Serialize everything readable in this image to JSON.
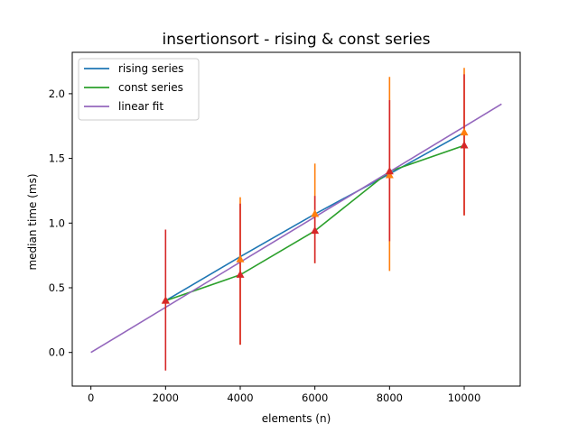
{
  "chart_data": {
    "type": "line",
    "title": "insertionsort - rising & const series",
    "xlabel": "elements (n)",
    "ylabel": "median time (ms)",
    "xlim": [
      -500,
      11500
    ],
    "ylim": [
      -0.26,
      2.32
    ],
    "xticks": [
      0,
      2000,
      4000,
      6000,
      8000,
      10000
    ],
    "xtick_labels": [
      "0",
      "2000",
      "4000",
      "6000",
      "8000",
      "10000"
    ],
    "yticks": [
      0.0,
      0.5,
      1.0,
      1.5,
      2.0
    ],
    "ytick_labels": [
      "0.0",
      "0.5",
      "1.0",
      "1.5",
      "2.0"
    ],
    "grid": false,
    "legend_position": "top-left",
    "series": [
      {
        "name": "rising series",
        "color": "#1f77b4",
        "x": [
          2000,
          4000,
          6000,
          8000,
          10000
        ],
        "y": [
          0.4,
          0.74,
          1.07,
          1.38,
          1.7
        ]
      },
      {
        "name": "const series",
        "color": "#2ca02c",
        "x": [
          2000,
          4000,
          6000,
          8000,
          10000
        ],
        "y": [
          0.4,
          0.6,
          0.94,
          1.4,
          1.6
        ]
      },
      {
        "name": "linear fit",
        "color": "#9467bd",
        "x": [
          0,
          11000
        ],
        "y": [
          0.0,
          1.92
        ]
      }
    ],
    "error_markers": [
      {
        "color": "#ff7f0e",
        "x": [
          2000,
          4000,
          6000,
          8000,
          10000
        ],
        "y": [
          0.4,
          0.72,
          1.07,
          1.37,
          1.7
        ],
        "low": [
          0.4,
          0.06,
          0.69,
          0.63,
          1.06
        ],
        "high": [
          0.4,
          1.2,
          1.46,
          2.13,
          2.2
        ]
      },
      {
        "color": "#d62728",
        "x": [
          2000,
          4000,
          6000,
          8000,
          10000
        ],
        "y": [
          0.4,
          0.6,
          0.94,
          1.4,
          1.6
        ],
        "low": [
          -0.14,
          0.06,
          0.69,
          0.86,
          1.06
        ],
        "high": [
          0.95,
          1.15,
          1.21,
          1.95,
          2.15
        ]
      }
    ]
  }
}
